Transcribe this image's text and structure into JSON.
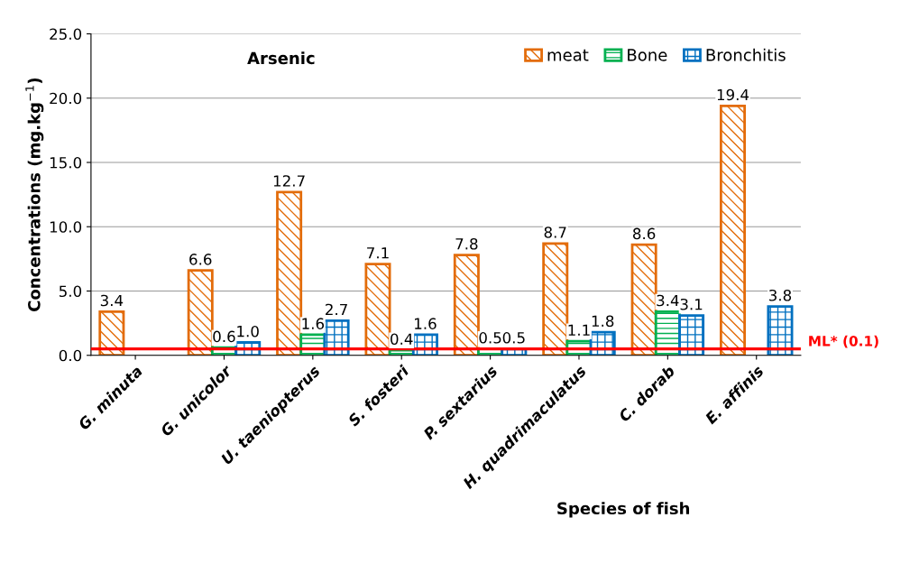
{
  "chart_data": {
    "type": "bar",
    "title": "Arsenic",
    "xlabel": "Species of fish",
    "ylabel": "Concentrations (mg.kg$^{−1}$)",
    "categories": [
      "G. minuta",
      "G. unicolor",
      "U. taeniopterus",
      "S. fosteri",
      "P. sextarius",
      "H. quadrimaculatus",
      "C. dorab",
      "E. affinis"
    ],
    "series": [
      {
        "name": "meat",
        "color": "#e36c0a",
        "values": [
          3.4,
          6.6,
          12.7,
          7.1,
          7.8,
          8.7,
          8.6,
          19.4
        ],
        "value_labels": [
          "3.4",
          "6.6",
          "12.7",
          "7.1",
          "7.8",
          "8.7",
          "8.6",
          "19.4"
        ]
      },
      {
        "name": "Bone",
        "color": "#00b050",
        "values": [
          null,
          0.6,
          1.6,
          0.4,
          0.5,
          1.1,
          3.4,
          null
        ],
        "value_labels": [
          null,
          "0.6",
          "1.6",
          "0.4",
          "0.5",
          "1.1",
          "3.4",
          null
        ]
      },
      {
        "name": "Bronchitis",
        "color": "#0070c0",
        "values": [
          null,
          1.0,
          2.7,
          1.6,
          0.5,
          1.8,
          3.1,
          3.8
        ],
        "value_labels": [
          null,
          "1.0",
          "2.7",
          "1.6",
          "0.5",
          "1.8",
          "3.1",
          "3.8"
        ]
      }
    ],
    "ylim": [
      0,
      25
    ],
    "yticks": [
      {
        "value": 0,
        "label": "0.0"
      },
      {
        "value": 5,
        "label": "5.0"
      },
      {
        "value": 10,
        "label": "10.0"
      },
      {
        "value": 15,
        "label": "15.0"
      },
      {
        "value": 20,
        "label": "20.0"
      },
      {
        "value": 25,
        "label": "25.0"
      }
    ],
    "grid": "y",
    "legend": "top right",
    "ref_lines": [
      {
        "axis": "y",
        "value": 0.5,
        "label": "ML* (0.1)",
        "color": "#ff0000"
      }
    ]
  }
}
